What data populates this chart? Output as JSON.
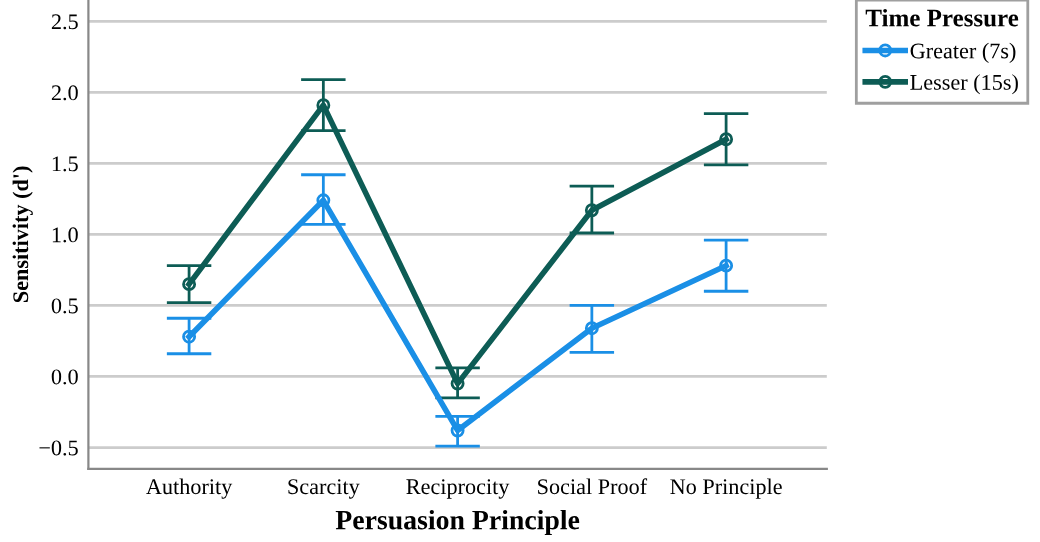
{
  "chart_data": {
    "type": "line",
    "xlabel": "Persuasion Principle",
    "ylabel": "Sensitivity (d')",
    "legend_title": "Time Pressure",
    "categories": [
      "Authority",
      "Scarcity",
      "Reciprocity",
      "Social Proof",
      "No Principle"
    ],
    "series": [
      {
        "name": "Greater (7s)",
        "color": "#1a8fe6",
        "values": [
          0.28,
          1.24,
          -0.38,
          0.34,
          0.78
        ],
        "errors": [
          [
            0.16,
            0.41
          ],
          [
            1.07,
            1.42
          ],
          [
            -0.49,
            -0.28
          ],
          [
            0.17,
            0.5
          ],
          [
            0.6,
            0.96
          ]
        ]
      },
      {
        "name": "Lesser (15s)",
        "color": "#0d5c55",
        "values": [
          0.65,
          1.91,
          -0.05,
          1.17,
          1.67
        ],
        "errors": [
          [
            0.52,
            0.78
          ],
          [
            1.73,
            2.09
          ],
          [
            -0.15,
            0.06
          ],
          [
            1.01,
            1.34
          ],
          [
            1.49,
            1.85
          ]
        ]
      }
    ],
    "ylim": [
      -0.65,
      2.65
    ],
    "yticks": [
      {
        "value": -0.5,
        "label": "−0.5"
      },
      {
        "value": 0,
        "label": "0.0"
      },
      0.5,
      {
        "value": 1,
        "label": "1.0"
      },
      1.5,
      {
        "value": 2,
        "label": "2.0"
      },
      2.5
    ],
    "grid": "y",
    "legend": "top right",
    "marker": "circle",
    "line_style": "solid"
  }
}
